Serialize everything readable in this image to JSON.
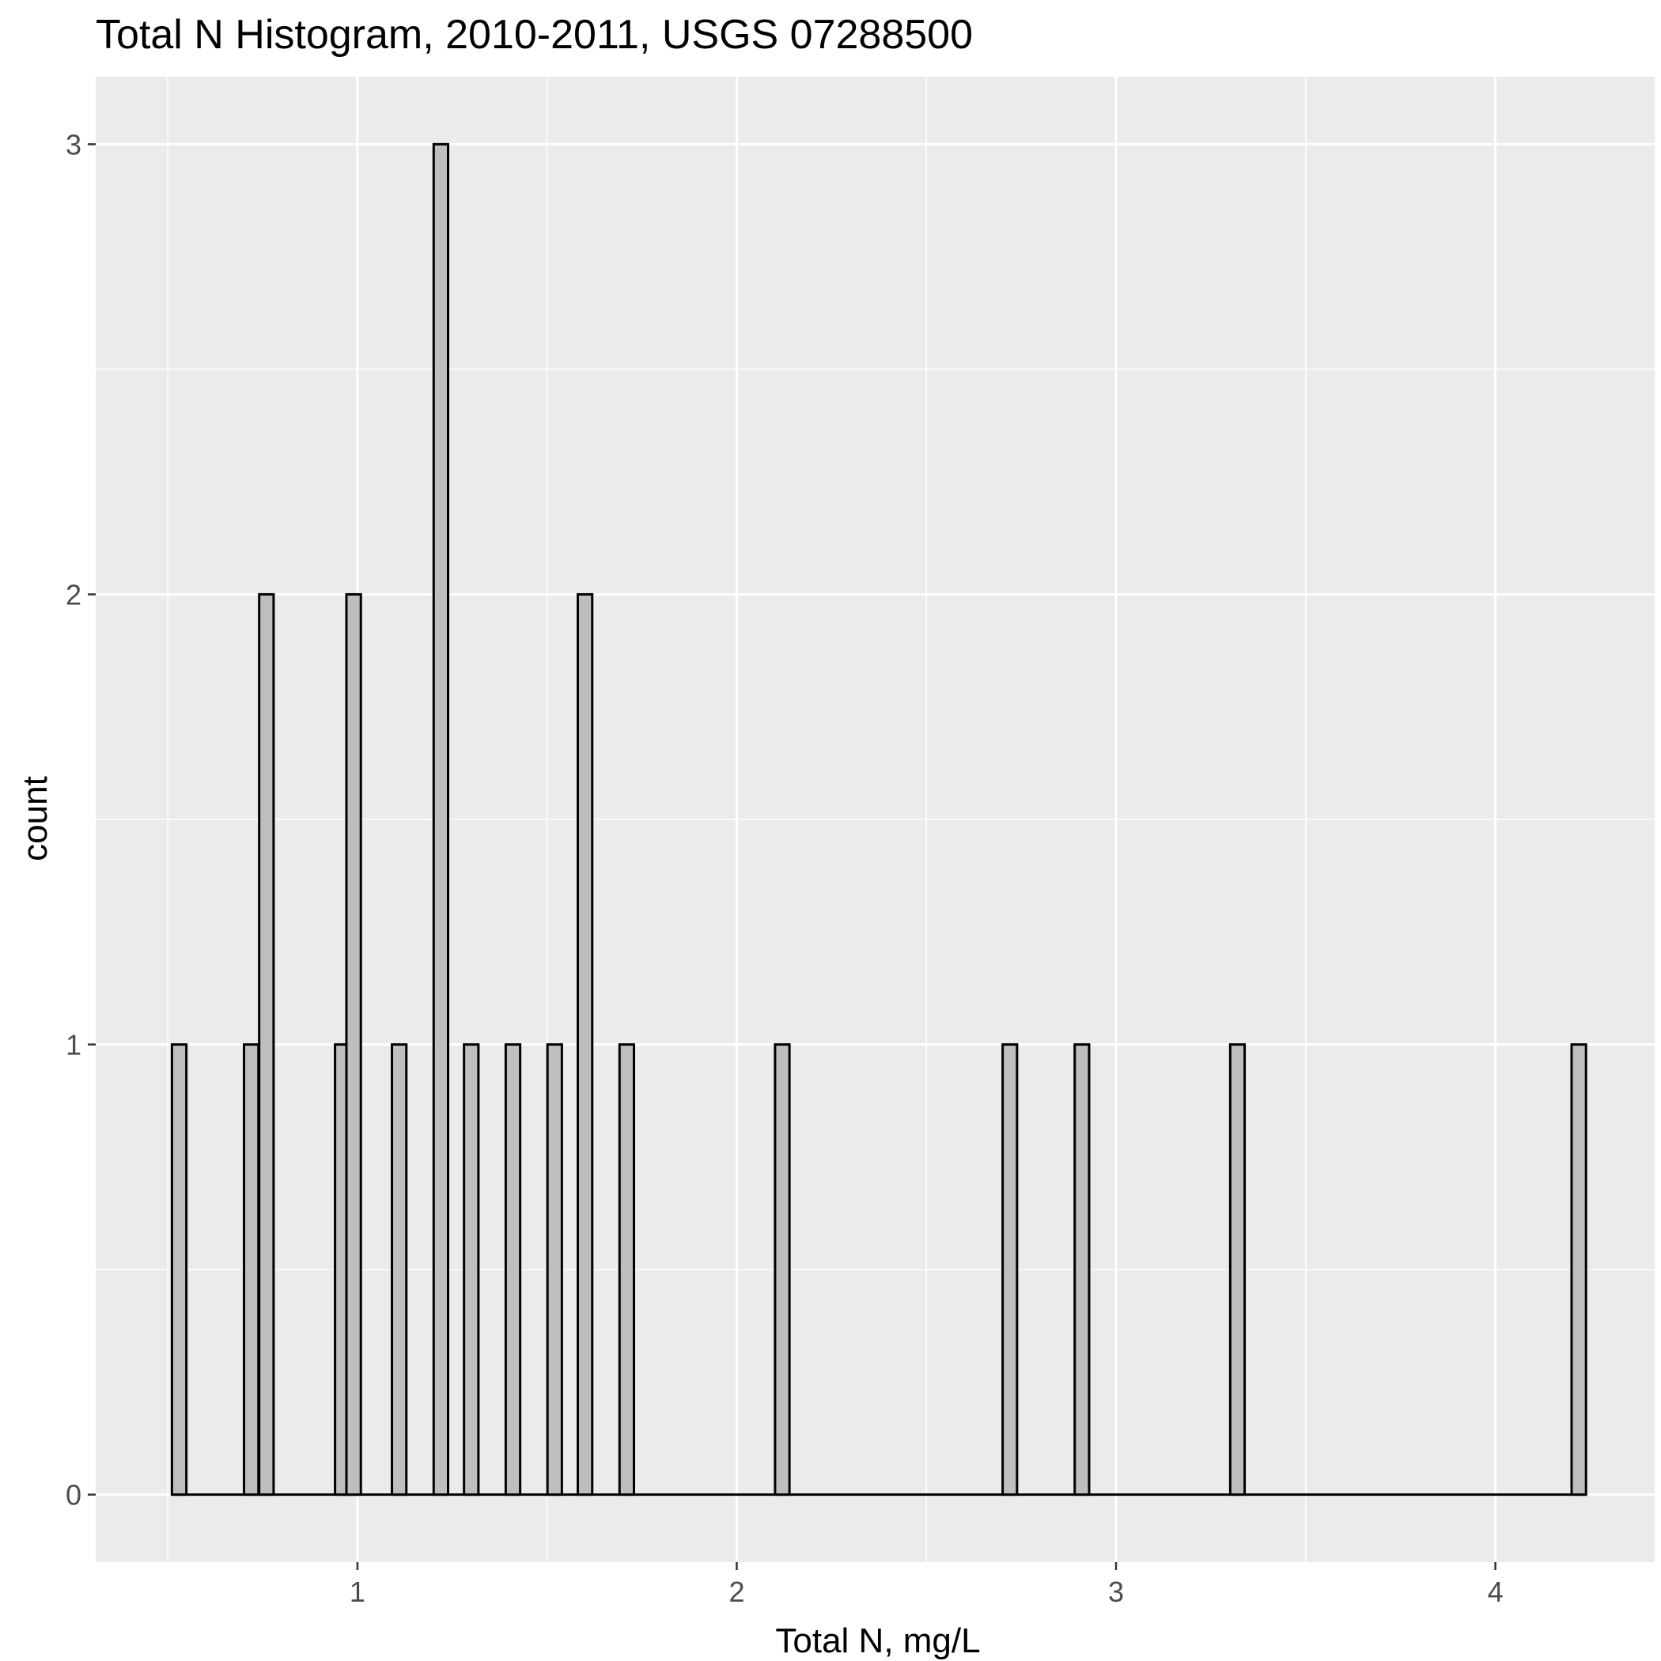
{
  "chart_data": {
    "type": "bar",
    "title": "Total N Histogram, 2010-2011, USGS 07288500",
    "xlabel": "Total N, mg/L",
    "ylabel": "count",
    "xlim": [
      0.31,
      4.42
    ],
    "ylim": [
      -0.15,
      3.15
    ],
    "x_ticks": [
      1,
      2,
      3,
      4
    ],
    "y_ticks": [
      0,
      1,
      2,
      3
    ],
    "bin_width": 0.038,
    "bin_range": [
      0.51,
      4.24
    ],
    "bins": [
      {
        "x": 0.53,
        "count": 1
      },
      {
        "x": 0.72,
        "count": 1
      },
      {
        "x": 0.76,
        "count": 2
      },
      {
        "x": 0.96,
        "count": 1
      },
      {
        "x": 0.99,
        "count": 2
      },
      {
        "x": 1.11,
        "count": 1
      },
      {
        "x": 1.22,
        "count": 3
      },
      {
        "x": 1.3,
        "count": 1
      },
      {
        "x": 1.41,
        "count": 1
      },
      {
        "x": 1.52,
        "count": 1
      },
      {
        "x": 1.6,
        "count": 2
      },
      {
        "x": 1.71,
        "count": 1
      },
      {
        "x": 2.12,
        "count": 1
      },
      {
        "x": 2.72,
        "count": 1
      },
      {
        "x": 2.91,
        "count": 1
      },
      {
        "x": 3.32,
        "count": 1
      },
      {
        "x": 4.22,
        "count": 1
      }
    ],
    "grid": true,
    "colors": {
      "panel": "#EBEBEB",
      "grid": "#FFFFFF",
      "bar_fill": "#BEBEBE",
      "bar_outline": "#000000",
      "tick_label": "#4D4D4D"
    }
  }
}
